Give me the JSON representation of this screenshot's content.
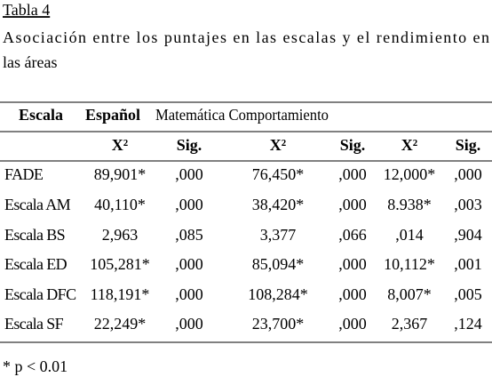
{
  "caption": {
    "label": "Tabla 4",
    "title": [
      "Asociación entre los puntajes en las escalas y el rendimiento en",
      "las áreas"
    ]
  },
  "table": {
    "header": [
      "Escala",
      "Español",
      "Matemática Comportamiento"
    ],
    "subheader": [
      "X²",
      "Sig.",
      "X²",
      "Sig.",
      "X²",
      "Sig."
    ],
    "rows": [
      [
        "FADE",
        "89,901*",
        ",000",
        "76,450*",
        ",000",
        "12,000*",
        ",000"
      ],
      [
        "Escala AM",
        "40,110*",
        ",000",
        "38,420*",
        ",000",
        "8.938*",
        ",003"
      ],
      [
        "Escala BS",
        "2,963",
        ",085",
        "3,377",
        ",066",
        ",014",
        ",904"
      ],
      [
        "Escala ED",
        "105,281*",
        ",000",
        "85,094*",
        ",000",
        "10,112*",
        ",001"
      ],
      [
        "Escala DFC",
        "118,191*",
        ",000",
        "108,284*",
        ",000",
        "8,007*",
        ",005"
      ],
      [
        "Escala SF",
        "22,249*",
        ",000",
        "23,700*",
        ",000",
        "2,367",
        ",124"
      ]
    ]
  },
  "footnote": "* p < 0.01"
}
